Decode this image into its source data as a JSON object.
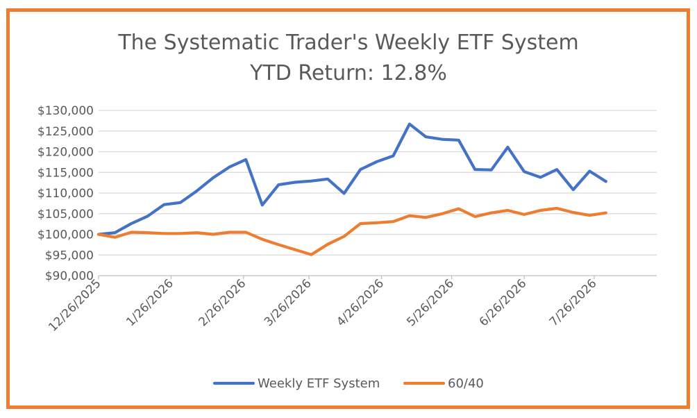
{
  "chart_data": {
    "type": "line",
    "title": "The Systematic Trader's Weekly ETF System",
    "subtitle": "YTD Return: 12.8%",
    "xlabel": "",
    "ylabel": "",
    "x_tick_labels": [
      "12/26/2025",
      "1/26/2026",
      "2/26/2026",
      "3/26/2026",
      "4/26/2026",
      "5/26/2026",
      "6/26/2026",
      "7/26/2026"
    ],
    "y_tick_labels": [
      "$90,000",
      "$95,000",
      "$100,000",
      "$105,000",
      "$110,000",
      "$115,000",
      "$120,000",
      "$125,000",
      "$130,000"
    ],
    "ylim": [
      90000,
      130000
    ],
    "grid": "horizontal",
    "legend_position": "bottom",
    "x": [
      "2025-12-26",
      "2026-01-02",
      "2026-01-09",
      "2026-01-16",
      "2026-01-23",
      "2026-01-30",
      "2026-02-06",
      "2026-02-13",
      "2026-02-20",
      "2026-02-27",
      "2026-03-06",
      "2026-03-13",
      "2026-03-20",
      "2026-03-27",
      "2026-04-03",
      "2026-04-10",
      "2026-04-17",
      "2026-04-24",
      "2026-05-01",
      "2026-05-08",
      "2026-05-15",
      "2026-05-22",
      "2026-05-29",
      "2026-06-05",
      "2026-06-12",
      "2026-06-19",
      "2026-06-26",
      "2026-07-03",
      "2026-07-10",
      "2026-07-17",
      "2026-07-24",
      "2026-07-31"
    ],
    "series": [
      {
        "name": "Weekly ETF System",
        "color": "#4472c4",
        "values": [
          100000,
          100400,
          102600,
          104400,
          107200,
          107700,
          110500,
          113700,
          116300,
          118100,
          107100,
          112000,
          112600,
          112900,
          113400,
          109900,
          115700,
          117600,
          119000,
          126700,
          123600,
          123000,
          122800,
          115700,
          115600,
          121100,
          115200,
          113800,
          115700,
          110800,
          115300,
          112800
        ]
      },
      {
        "name": "60/40",
        "color": "#ed7d31",
        "values": [
          100000,
          99300,
          100500,
          100400,
          100200,
          100200,
          100400,
          100000,
          100500,
          100500,
          98800,
          97500,
          96300,
          95100,
          97600,
          99500,
          102600,
          102800,
          103100,
          104500,
          104100,
          105000,
          106200,
          104300,
          105200,
          105800,
          104800,
          105800,
          106300,
          105300,
          104600,
          105200
        ]
      }
    ]
  }
}
